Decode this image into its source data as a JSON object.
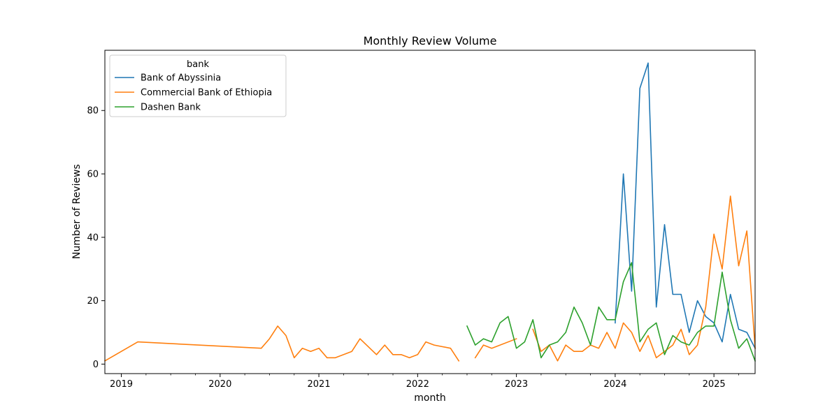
{
  "chart_data": {
    "type": "line",
    "title": "Monthly Review Volume",
    "xlabel": "month",
    "ylabel": "Number of Reviews",
    "xlim": [
      "2018-11",
      "2025-06"
    ],
    "ylim": [
      -3,
      99
    ],
    "x_ticks": [
      {
        "date": "2019-01",
        "label": "2019"
      },
      {
        "date": "2020-01",
        "label": "2020"
      },
      {
        "date": "2021-01",
        "label": "2021"
      },
      {
        "date": "2022-01",
        "label": "2022"
      },
      {
        "date": "2023-01",
        "label": "2023"
      },
      {
        "date": "2024-01",
        "label": "2024"
      },
      {
        "date": "2025-01",
        "label": "2025"
      }
    ],
    "y_ticks": [
      0,
      20,
      40,
      60,
      80
    ],
    "grid": false,
    "legend": {
      "title": "bank",
      "position": "upper-left"
    },
    "series": [
      {
        "name": "Bank of Abyssinia",
        "color": "#1f77b4",
        "points": [
          [
            "2024-01",
            13
          ],
          [
            "2024-02",
            60
          ],
          [
            "2024-03",
            23
          ],
          [
            "2024-04",
            87
          ],
          [
            "2024-05",
            95
          ],
          [
            "2024-06",
            18
          ],
          [
            "2024-07",
            44
          ],
          [
            "2024-08",
            22
          ],
          [
            "2024-09",
            22
          ],
          [
            "2024-10",
            10
          ],
          [
            "2024-11",
            20
          ],
          [
            "2024-12",
            15
          ],
          [
            "2025-01",
            13
          ],
          [
            "2025-02",
            7
          ],
          [
            "2025-03",
            22
          ],
          [
            "2025-04",
            11
          ],
          [
            "2025-05",
            10
          ],
          [
            "2025-06",
            5
          ]
        ]
      },
      {
        "name": "Commercial Bank of Ethiopia",
        "color": "#ff7f0e",
        "segments": [
          [
            [
              "2018-11",
              1
            ],
            [
              "2019-03",
              7
            ],
            [
              "2020-06",
              5
            ],
            [
              "2020-07",
              8
            ],
            [
              "2020-08",
              12
            ],
            [
              "2020-09",
              9
            ],
            [
              "2020-10",
              2
            ],
            [
              "2020-11",
              5
            ],
            [
              "2020-12",
              4
            ],
            [
              "2021-01",
              5
            ],
            [
              "2021-02",
              2
            ],
            [
              "2021-03",
              2
            ],
            [
              "2021-05",
              4
            ],
            [
              "2021-06",
              8
            ],
            [
              "2021-08",
              3
            ],
            [
              "2021-09",
              6
            ],
            [
              "2021-10",
              3
            ],
            [
              "2021-11",
              3
            ],
            [
              "2021-12",
              2
            ],
            [
              "2022-01",
              3
            ],
            [
              "2022-02",
              7
            ],
            [
              "2022-03",
              6
            ],
            [
              "2022-05",
              5
            ],
            [
              "2022-06",
              1
            ]
          ],
          [
            [
              "2022-08",
              2
            ],
            [
              "2022-09",
              6
            ],
            [
              "2022-10",
              5
            ],
            [
              "2023-01",
              8
            ]
          ],
          [
            [
              "2023-03",
              11
            ],
            [
              "2023-04",
              4
            ],
            [
              "2023-05",
              6
            ],
            [
              "2023-06",
              1
            ],
            [
              "2023-07",
              6
            ],
            [
              "2023-08",
              4
            ],
            [
              "2023-09",
              4
            ],
            [
              "2023-10",
              6
            ],
            [
              "2023-11",
              5
            ],
            [
              "2023-12",
              10
            ],
            [
              "2024-01",
              5
            ],
            [
              "2024-02",
              13
            ],
            [
              "2024-03",
              10
            ],
            [
              "2024-04",
              4
            ],
            [
              "2024-05",
              9
            ],
            [
              "2024-06",
              2
            ],
            [
              "2024-07",
              4
            ],
            [
              "2024-08",
              6
            ],
            [
              "2024-09",
              11
            ],
            [
              "2024-10",
              3
            ],
            [
              "2024-11",
              6
            ],
            [
              "2024-12",
              18
            ],
            [
              "2025-01",
              41
            ],
            [
              "2025-02",
              30
            ],
            [
              "2025-03",
              53
            ],
            [
              "2025-04",
              31
            ],
            [
              "2025-05",
              42
            ],
            [
              "2025-06",
              5
            ]
          ]
        ]
      },
      {
        "name": "Dashen Bank",
        "color": "#2ca02c",
        "points": [
          [
            "2022-07",
            12
          ],
          [
            "2022-08",
            6
          ],
          [
            "2022-09",
            8
          ],
          [
            "2022-10",
            7
          ],
          [
            "2022-11",
            13
          ],
          [
            "2022-12",
            15
          ],
          [
            "2023-01",
            5
          ],
          [
            "2023-02",
            7
          ],
          [
            "2023-03",
            14
          ],
          [
            "2023-04",
            2
          ],
          [
            "2023-05",
            6
          ],
          [
            "2023-06",
            7
          ],
          [
            "2023-07",
            10
          ],
          [
            "2023-08",
            18
          ],
          [
            "2023-09",
            13
          ],
          [
            "2023-10",
            6
          ],
          [
            "2023-11",
            18
          ],
          [
            "2023-12",
            14
          ],
          [
            "2024-01",
            14
          ],
          [
            "2024-02",
            26
          ],
          [
            "2024-03",
            32
          ],
          [
            "2024-04",
            7
          ],
          [
            "2024-05",
            11
          ],
          [
            "2024-06",
            13
          ],
          [
            "2024-07",
            3
          ],
          [
            "2024-08",
            9
          ],
          [
            "2024-09",
            7
          ],
          [
            "2024-10",
            6
          ],
          [
            "2024-11",
            10
          ],
          [
            "2024-12",
            12
          ],
          [
            "2025-01",
            12
          ],
          [
            "2025-02",
            29
          ],
          [
            "2025-03",
            14
          ],
          [
            "2025-04",
            5
          ],
          [
            "2025-05",
            8
          ],
          [
            "2025-06",
            1
          ]
        ]
      }
    ]
  }
}
